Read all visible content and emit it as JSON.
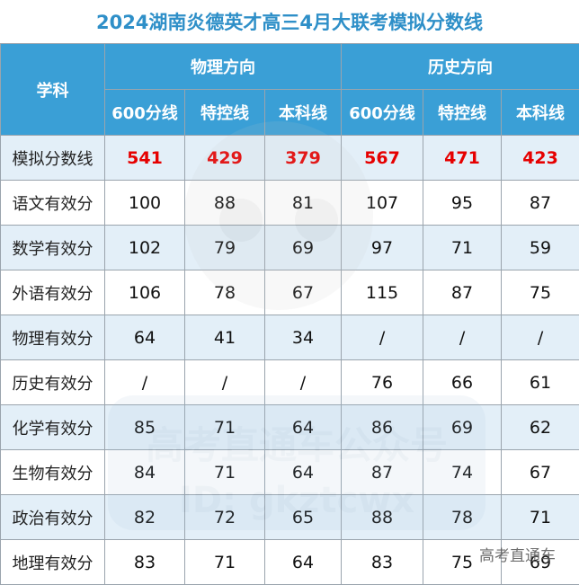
{
  "title": "2024湖南炎德英才高三4月大联考模拟分数线",
  "header": {
    "subject": "学科",
    "groups": [
      "物理方向",
      "历史方向"
    ],
    "columns": [
      "600分线",
      "特控线",
      "本科线",
      "600分线",
      "特控线",
      "本科线"
    ]
  },
  "score_row": {
    "label": "模拟分数线",
    "values": [
      "541",
      "429",
      "379",
      "567",
      "471",
      "423"
    ]
  },
  "rows": [
    {
      "label": "语文有效分",
      "values": [
        "100",
        "88",
        "81",
        "107",
        "95",
        "87"
      ]
    },
    {
      "label": "数学有效分",
      "values": [
        "102",
        "79",
        "69",
        "97",
        "71",
        "59"
      ]
    },
    {
      "label": "外语有效分",
      "values": [
        "106",
        "78",
        "67",
        "115",
        "87",
        "75"
      ]
    },
    {
      "label": "物理有效分",
      "values": [
        "64",
        "41",
        "34",
        "/",
        "/",
        "/"
      ]
    },
    {
      "label": "历史有效分",
      "values": [
        "/",
        "/",
        "/",
        "76",
        "66",
        "61"
      ]
    },
    {
      "label": "化学有效分",
      "values": [
        "85",
        "71",
        "64",
        "86",
        "69",
        "62"
      ]
    },
    {
      "label": "生物有效分",
      "values": [
        "84",
        "71",
        "64",
        "87",
        "74",
        "67"
      ]
    },
    {
      "label": "政治有效分",
      "values": [
        "82",
        "72",
        "65",
        "88",
        "78",
        "71"
      ]
    },
    {
      "label": "地理有效分",
      "values": [
        "83",
        "71",
        "64",
        "83",
        "75",
        "69"
      ]
    }
  ],
  "watermark": {
    "line1": "高考直通车公众号",
    "line2": "ID: gkztcwx",
    "corner": "高考直通车"
  },
  "colors": {
    "title": "#2e8fc8",
    "header_bg": "#3a9fd6",
    "band_bg": "#e3eff8",
    "score_red": "#e60000"
  }
}
